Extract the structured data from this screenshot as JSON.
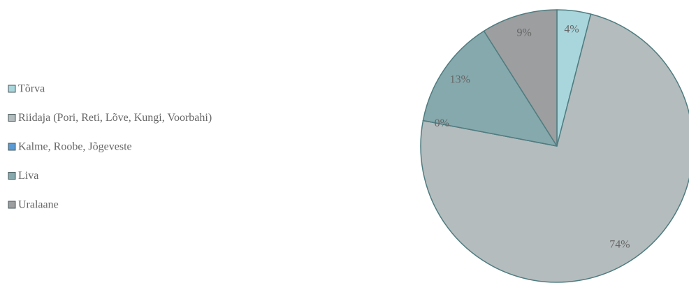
{
  "chart_data": {
    "type": "pie",
    "categories": [
      "Tõrva",
      "Riidaja (Pori, Reti, Lõve, Kungi, Voorbahi)",
      "Kalme, Roobe, Jõgeveste",
      "Liva",
      "Uralaane"
    ],
    "values": [
      4,
      74,
      0,
      13,
      9
    ],
    "value_labels": [
      "4%",
      "74%",
      "0%",
      "13%",
      "9%"
    ],
    "colors": [
      "#a9d6dc",
      "#b4bcbd",
      "#5b9bd5",
      "#86a9ad",
      "#9c9e9f"
    ],
    "legend": "left"
  }
}
